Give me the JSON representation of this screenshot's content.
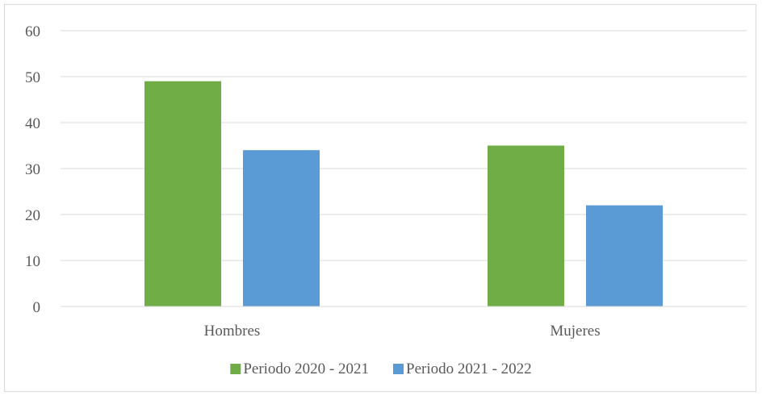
{
  "chart_data": {
    "type": "bar",
    "categories": [
      "Hombres",
      "Mujeres"
    ],
    "series": [
      {
        "name": "Periodo 2020 - 2021",
        "values": [
          49,
          35
        ],
        "color": "#70ad47"
      },
      {
        "name": "Periodo 2021 - 2022",
        "values": [
          34,
          22
        ],
        "color": "#5b9bd5"
      }
    ],
    "ylim": [
      0,
      60
    ],
    "yticks": [
      0,
      10,
      20,
      30,
      40,
      50,
      60
    ],
    "grid": true,
    "legend_position": "bottom",
    "gridline_color": "#d9d9d9",
    "axis_color": "#d9d9d9"
  }
}
